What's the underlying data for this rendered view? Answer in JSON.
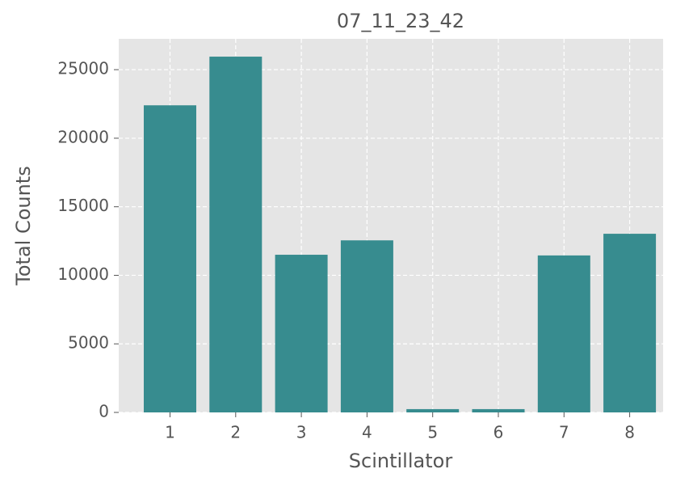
{
  "chart_data": {
    "type": "bar",
    "title": "07_11_23_42",
    "x_label": "Scintillator",
    "y_label": "Total Counts",
    "categories": [
      "1",
      "2",
      "3",
      "4",
      "5",
      "6",
      "7",
      "8"
    ],
    "values": [
      22400,
      25950,
      11500,
      12550,
      240,
      240,
      11450,
      13030
    ],
    "color": "#378c8f",
    "ylim": [
      0,
      27250
    ],
    "yticks": [
      0,
      5000,
      10000,
      15000,
      20000,
      25000
    ],
    "grid": true
  }
}
